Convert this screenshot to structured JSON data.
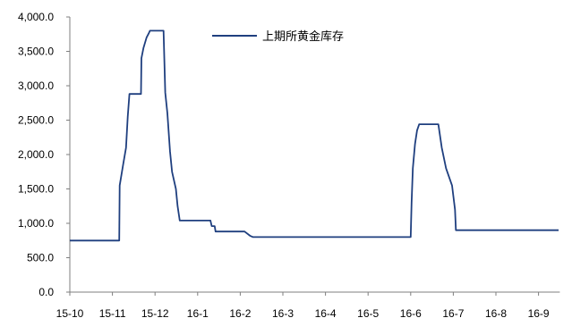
{
  "chart_data": {
    "type": "line",
    "title": "",
    "xlabel": "",
    "ylabel": "",
    "ylim": [
      0,
      4000
    ],
    "y_ticks": [
      0,
      500,
      1000,
      1500,
      2000,
      2500,
      3000,
      3500,
      4000
    ],
    "y_tick_labels": [
      "0.0",
      "500.0",
      "1,000.0",
      "1,500.0",
      "2,000.0",
      "2,500.0",
      "3,000.0",
      "3,500.0",
      "4,000.0"
    ],
    "x_ticks": [
      "15-10",
      "15-11",
      "15-12",
      "16-1",
      "16-2",
      "16-3",
      "16-4",
      "16-5",
      "16-6",
      "16-7",
      "16-8",
      "16-9"
    ],
    "x_range_months": [
      0,
      11.5
    ],
    "grid": false,
    "legend_position": "top-center",
    "colors": {
      "series": "#1f3f7f",
      "axis": "#7f7f7f"
    },
    "series": [
      {
        "name": "上期所黄金库存",
        "points": [
          [
            0.0,
            750
          ],
          [
            1.16,
            750
          ],
          [
            1.17,
            1550
          ],
          [
            1.25,
            1850
          ],
          [
            1.32,
            2100
          ],
          [
            1.36,
            2550
          ],
          [
            1.4,
            2880
          ],
          [
            1.67,
            2880
          ],
          [
            1.68,
            3400
          ],
          [
            1.73,
            3550
          ],
          [
            1.8,
            3700
          ],
          [
            1.86,
            3770
          ],
          [
            1.88,
            3800
          ],
          [
            2.2,
            3800
          ],
          [
            2.24,
            2900
          ],
          [
            2.29,
            2600
          ],
          [
            2.35,
            2050
          ],
          [
            2.4,
            1750
          ],
          [
            2.49,
            1500
          ],
          [
            2.53,
            1250
          ],
          [
            2.58,
            1040
          ],
          [
            3.3,
            1040
          ],
          [
            3.33,
            960
          ],
          [
            3.4,
            960
          ],
          [
            3.42,
            880
          ],
          [
            4.1,
            880
          ],
          [
            4.23,
            820
          ],
          [
            4.3,
            800
          ],
          [
            8.0,
            800
          ],
          [
            8.02,
            1300
          ],
          [
            8.05,
            1800
          ],
          [
            8.1,
            2150
          ],
          [
            8.15,
            2350
          ],
          [
            8.2,
            2440
          ],
          [
            8.65,
            2440
          ],
          [
            8.73,
            2100
          ],
          [
            8.83,
            1800
          ],
          [
            8.97,
            1550
          ],
          [
            9.04,
            1200
          ],
          [
            9.06,
            900
          ],
          [
            11.47,
            900
          ]
        ]
      }
    ]
  }
}
